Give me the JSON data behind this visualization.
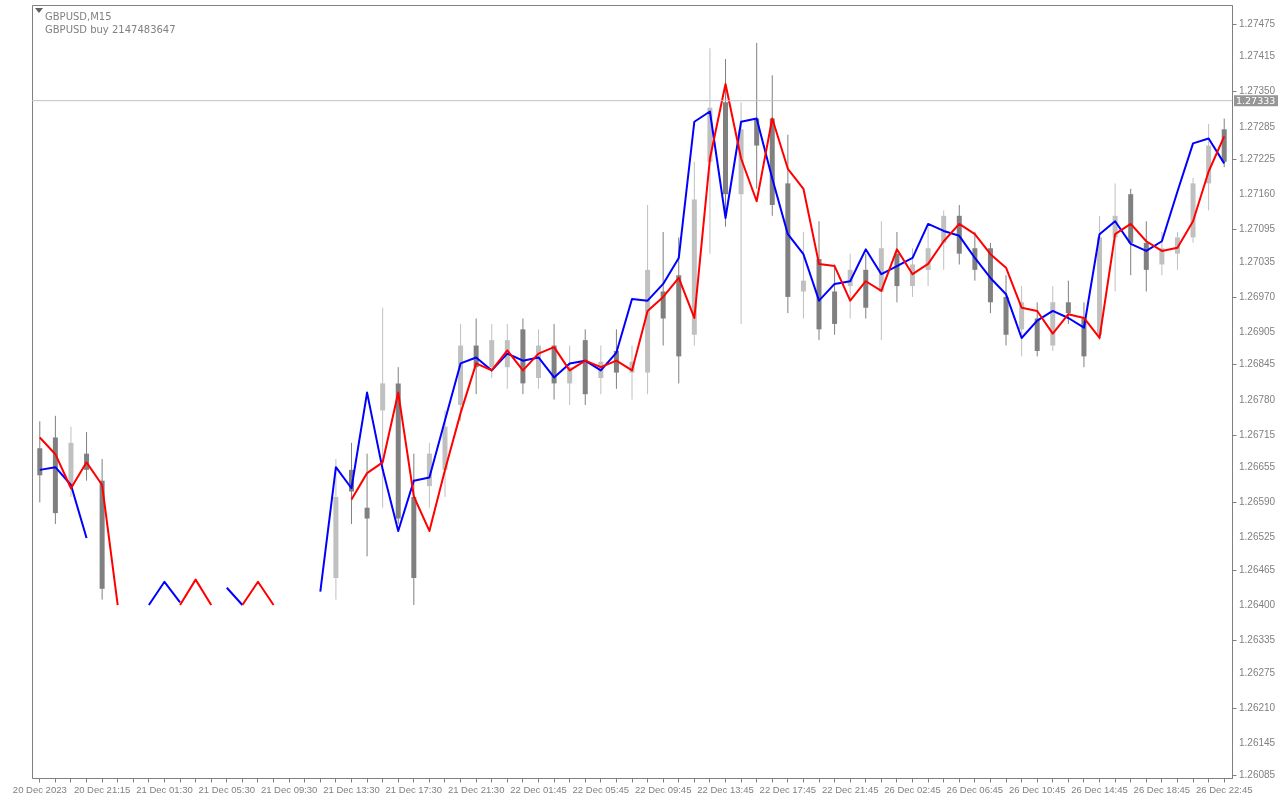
{
  "chart_data": {
    "type": "candlestick",
    "title": "GBPUSD,M15",
    "subtitle": "GBPUSD buy 2147483647",
    "categories": [
      "20 Dec 2023",
      null,
      null,
      null,
      "20 Dec 21:15",
      null,
      null,
      null,
      "21 Dec 01:30",
      null,
      null,
      null,
      "21 Dec 05:30",
      null,
      null,
      null,
      "21 Dec 09:30",
      null,
      null,
      null,
      "21 Dec 13:30",
      null,
      null,
      null,
      "21 Dec 17:30",
      null,
      null,
      null,
      "21 Dec 21:30",
      null,
      null,
      null,
      "22 Dec 01:45",
      null,
      null,
      null,
      "22 Dec 05:45",
      null,
      null,
      null,
      "22 Dec 09:45",
      null,
      null,
      null,
      "22 Dec 13:45",
      null,
      null,
      null,
      "22 Dec 17:45",
      null,
      null,
      null,
      "22 Dec 21:45",
      null,
      null,
      null,
      "26 Dec 02:45",
      null,
      null,
      null,
      "26 Dec 06:45",
      null,
      null,
      null,
      "26 Dec 10:45",
      null,
      null,
      null,
      "26 Dec 14:45",
      null,
      null,
      null,
      "26 Dec 18:45",
      null,
      null,
      null,
      "26 Dec 22:45"
    ],
    "ohlc": [
      [
        1.2669,
        1.2674,
        1.2659,
        1.2664
      ],
      [
        1.2671,
        1.2675,
        1.2655,
        1.2657
      ],
      [
        1.2662,
        1.2673,
        1.266,
        1.267
      ],
      [
        1.2668,
        1.2672,
        1.2663,
        1.2665
      ],
      [
        1.2663,
        1.2667,
        1.2641,
        1.2643
      ],
      null,
      null,
      null,
      null,
      null,
      null,
      null,
      null,
      null,
      null,
      null,
      null,
      null,
      null,
      [
        1.2645,
        1.2667,
        1.2641,
        1.266
      ],
      [
        1.2665,
        1.267,
        1.2655,
        1.2661
      ],
      [
        1.2658,
        1.2668,
        1.2649,
        1.2656
      ],
      [
        1.2676,
        1.2695,
        1.2658,
        1.2681
      ],
      [
        1.2681,
        1.2684,
        1.2655,
        1.2656
      ],
      [
        1.266,
        1.2668,
        1.264,
        1.2645
      ],
      [
        1.2662,
        1.267,
        1.2658,
        1.2668
      ],
      [
        1.2665,
        1.2676,
        1.266,
        1.2673
      ],
      [
        1.2677,
        1.2692,
        1.2674,
        1.2688
      ],
      [
        1.2688,
        1.2693,
        1.2679,
        1.2684
      ],
      [
        1.2684,
        1.2692,
        1.2682,
        1.2689
      ],
      [
        1.2684,
        1.2692,
        1.268,
        1.2689
      ],
      [
        1.2691,
        1.2693,
        1.2679,
        1.2681
      ],
      [
        1.2682,
        1.2691,
        1.268,
        1.2688
      ],
      [
        1.2688,
        1.2692,
        1.2678,
        1.2681
      ],
      [
        1.2681,
        1.2688,
        1.2677,
        1.2684
      ],
      [
        1.2689,
        1.2691,
        1.2677,
        1.2679
      ],
      [
        1.2682,
        1.2688,
        1.2679,
        1.2685
      ],
      [
        1.2687,
        1.2691,
        1.268,
        1.2683
      ],
      [
        1.2683,
        1.2688,
        1.2678,
        1.2685
      ],
      [
        1.2683,
        1.2714,
        1.2679,
        1.2702
      ],
      [
        1.2698,
        1.2709,
        1.2688,
        1.2693
      ],
      [
        1.2701,
        1.2708,
        1.2681,
        1.2686
      ],
      [
        1.269,
        1.2722,
        1.2688,
        1.2715
      ],
      [
        1.2722,
        1.2743,
        1.2705,
        1.2732
      ],
      [
        1.2733,
        1.2741,
        1.271,
        1.2716
      ],
      [
        1.2716,
        1.2733,
        1.2692,
        1.2728
      ],
      [
        1.273,
        1.2744,
        1.2717,
        1.2725
      ],
      [
        1.273,
        1.2738,
        1.2712,
        1.2714
      ],
      [
        1.2718,
        1.2727,
        1.2694,
        1.2697
      ],
      [
        1.2698,
        1.2709,
        1.2693,
        1.27
      ],
      [
        1.2704,
        1.2711,
        1.2689,
        1.2691
      ],
      [
        1.2698,
        1.2703,
        1.269,
        1.2692
      ],
      [
        1.2699,
        1.2705,
        1.2693,
        1.2702
      ],
      [
        1.2702,
        1.2705,
        1.2693,
        1.2695
      ],
      [
        1.2698,
        1.2711,
        1.2689,
        1.2706
      ],
      [
        1.2705,
        1.2709,
        1.2696,
        1.2699
      ],
      [
        1.2699,
        1.2706,
        1.2697,
        1.2703
      ],
      [
        1.2702,
        1.271,
        1.2699,
        1.2706
      ],
      [
        1.2707,
        1.2713,
        1.2702,
        1.2712
      ],
      [
        1.2712,
        1.2714,
        1.2703,
        1.2705
      ],
      [
        1.2706,
        1.2709,
        1.27,
        1.2702
      ],
      [
        1.2706,
        1.2707,
        1.2694,
        1.2696
      ],
      [
        1.2697,
        1.2701,
        1.2688,
        1.269
      ],
      [
        1.2691,
        1.2699,
        1.2686,
        1.2696
      ],
      [
        1.2693,
        1.2696,
        1.2686,
        1.2687
      ],
      [
        1.2688,
        1.2699,
        1.2687,
        1.2696
      ],
      [
        1.2696,
        1.27,
        1.2692,
        1.2694
      ],
      [
        1.2693,
        1.2696,
        1.2684,
        1.2686
      ],
      [
        1.269,
        1.2712,
        1.2689,
        1.2708
      ],
      [
        1.2708,
        1.2718,
        1.2698,
        1.2712
      ],
      [
        1.2716,
        1.2717,
        1.2701,
        1.2707
      ],
      [
        1.2707,
        1.2711,
        1.2698,
        1.2702
      ],
      [
        1.2703,
        1.2709,
        1.2701,
        1.2706
      ],
      [
        1.2705,
        1.2709,
        1.2702,
        1.2708
      ],
      [
        1.2708,
        1.2719,
        1.2707,
        1.2718
      ],
      [
        1.2718,
        1.2729,
        1.2713,
        1.2725
      ],
      [
        1.2728,
        1.273,
        1.2721,
        1.2722
      ]
    ],
    "colors": [
      "#808080",
      "#808080",
      "#c0c0c0",
      "#808080",
      "#808080",
      null,
      null,
      null,
      null,
      null,
      null,
      null,
      null,
      null,
      null,
      null,
      null,
      null,
      null,
      "#c0c0c0",
      "#808080",
      "#808080",
      "#c0c0c0",
      "#808080",
      "#808080",
      "#c0c0c0",
      "#c0c0c0",
      "#c0c0c0",
      "#808080",
      "#c0c0c0",
      "#c0c0c0",
      "#808080",
      "#c0c0c0",
      "#808080",
      "#c0c0c0",
      "#808080",
      "#c0c0c0",
      "#808080",
      "#c0c0c0",
      "#c0c0c0",
      "#808080",
      "#808080",
      "#c0c0c0",
      "#c0c0c0",
      "#808080",
      "#c0c0c0",
      "#808080",
      "#808080",
      "#808080",
      "#c0c0c0",
      "#808080",
      "#808080",
      "#c0c0c0",
      "#808080",
      "#c0c0c0",
      "#808080",
      "#c0c0c0",
      "#c0c0c0",
      "#c0c0c0",
      "#808080",
      "#808080",
      "#808080",
      "#808080",
      "#c0c0c0",
      "#808080",
      "#c0c0c0",
      "#808080",
      "#808080",
      "#c0c0c0",
      "#c0c0c0",
      "#808080",
      "#808080",
      "#c0c0c0",
      "#c0c0c0",
      "#c0c0c0",
      "#c0c0c0",
      "#808080"
    ],
    "series": [
      {
        "type": "line",
        "color": "#0000ff",
        "values": [
          1.2665,
          1.26655,
          1.26622,
          1.26524,
          null,
          null,
          null,
          1.264,
          1.26443,
          1.26405,
          null,
          null,
          1.26432,
          1.264,
          null,
          null,
          null,
          null,
          1.26425,
          1.26655,
          1.26616,
          1.26793,
          1.26651,
          1.26537,
          1.2663,
          1.26636,
          1.26742,
          1.26847,
          1.26858,
          1.26834,
          1.26865,
          1.26852,
          1.26858,
          1.26821,
          1.26847,
          1.26852,
          1.26834,
          1.26867,
          1.26966,
          1.26963,
          1.26994,
          1.27042,
          1.27294,
          1.27313,
          1.27116,
          1.27294,
          1.273,
          1.27189,
          1.27086,
          1.27049,
          1.26963,
          1.26994,
          1.26999,
          1.27058,
          1.27012,
          1.27027,
          1.27042,
          1.27105,
          1.27092,
          1.27083,
          1.27042,
          1.27005,
          1.26975,
          1.26894,
          1.26926,
          1.26944,
          1.26931,
          1.26913,
          1.27086,
          1.2711,
          1.27068,
          1.27055,
          1.27073,
          1.27165,
          1.27254,
          1.27263,
          1.27217
        ]
      },
      {
        "type": "line",
        "color": "#ff0000",
        "values": [
          1.2671,
          1.26679,
          1.26616,
          1.26664,
          1.26622,
          1.264,
          null,
          null,
          null,
          1.264,
          1.26447,
          1.264,
          null,
          1.264,
          1.26443,
          1.264,
          null,
          null,
          null,
          null,
          1.26595,
          1.26644,
          1.26664,
          1.26793,
          1.26601,
          1.26537,
          1.2665,
          1.26755,
          1.26847,
          1.26834,
          1.26871,
          1.26834,
          1.26865,
          1.26877,
          1.26834,
          1.26852,
          1.2684,
          1.26852,
          1.26834,
          1.26944,
          1.2697,
          1.27005,
          1.26931,
          1.27226,
          1.27364,
          1.27226,
          1.27147,
          1.273,
          1.27207,
          1.2717,
          1.27031,
          1.27027,
          1.26963,
          1.26999,
          1.26981,
          1.27058,
          1.27012,
          1.27031,
          1.27073,
          1.27105,
          1.27086,
          1.27049,
          1.27024,
          1.2695,
          1.26944,
          1.26902,
          1.26938,
          1.26931,
          1.26894,
          1.27086,
          1.27105,
          1.27073,
          1.27055,
          1.27061,
          1.2711,
          1.27202,
          1.27267
        ]
      }
    ],
    "ylim": [
      1.2608,
      1.2751
    ],
    "yticks": [
      1.27475,
      1.27415,
      {
        "value": 1.2735,
        "label": "1.27350"
      },
      1.27285,
      1.27225,
      {
        "value": 1.2716,
        "label": "1.27160"
      },
      1.27095,
      1.27035,
      {
        "value": 1.2697,
        "label": "1.26970"
      },
      1.26905,
      1.26845,
      {
        "value": 1.2678,
        "label": "1.26780"
      },
      1.26715,
      1.26655,
      {
        "value": 1.2659,
        "label": "1.26590"
      },
      1.26525,
      1.26465,
      {
        "value": 1.264,
        "label": "1.26400"
      },
      1.26335,
      1.26275,
      {
        "value": 1.2621,
        "label": "1.26210"
      },
      1.26145,
      1.26085
    ],
    "ref_lines": [
      {
        "axis": "y",
        "value": 1.27333,
        "label": "1.27333",
        "color": "#c0c0c0"
      }
    ],
    "grid": false,
    "marker": "none",
    "line_style": "solid"
  }
}
